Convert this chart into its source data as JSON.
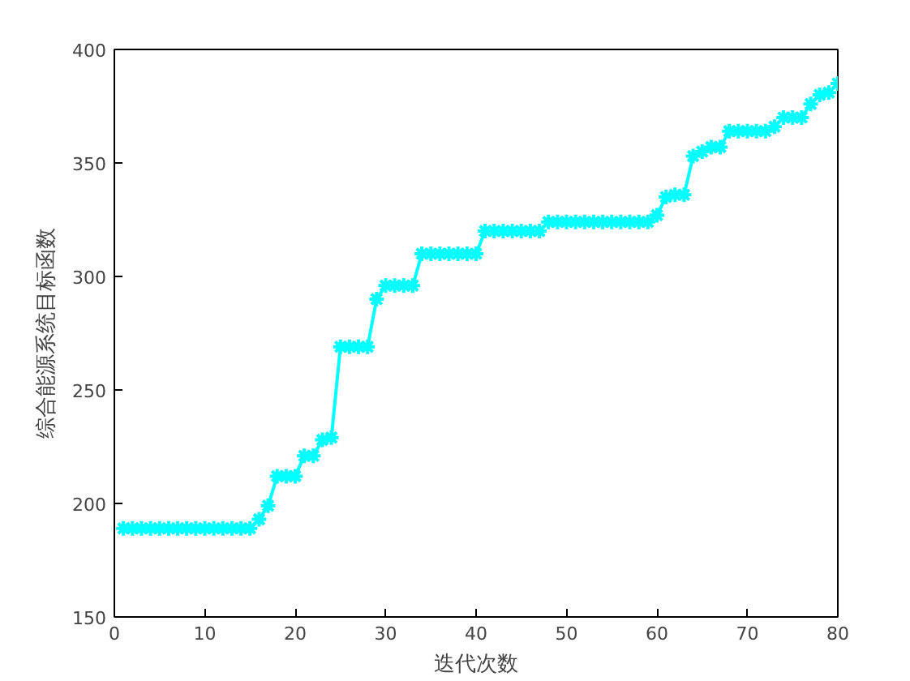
{
  "chart_data": {
    "type": "line",
    "xlabel": "迭代次数",
    "ylabel": "综合能源系统目标函数",
    "x": [
      1,
      2,
      3,
      4,
      5,
      6,
      7,
      8,
      9,
      10,
      11,
      12,
      13,
      14,
      15,
      16,
      17,
      18,
      19,
      20,
      21,
      22,
      23,
      24,
      25,
      26,
      27,
      28,
      29,
      30,
      31,
      32,
      33,
      34,
      35,
      36,
      37,
      38,
      39,
      40,
      41,
      42,
      43,
      44,
      45,
      46,
      47,
      48,
      49,
      50,
      51,
      52,
      53,
      54,
      55,
      56,
      57,
      58,
      59,
      60,
      61,
      62,
      63,
      64,
      65,
      66,
      67,
      68,
      69,
      70,
      71,
      72,
      73,
      74,
      75,
      76,
      77,
      78,
      79,
      80
    ],
    "series": [
      {
        "color": "#00ffff",
        "values": [
          189,
          189,
          189,
          189,
          189,
          189,
          189,
          189,
          189,
          189,
          189,
          189,
          189,
          189,
          189,
          193,
          199,
          212,
          212,
          212,
          221,
          221,
          228,
          229,
          269,
          269,
          269,
          269,
          290,
          296,
          296,
          296,
          296,
          310,
          310,
          310,
          310,
          310,
          310,
          310,
          320,
          320,
          320,
          320,
          320,
          320,
          320,
          324,
          324,
          324,
          324,
          324,
          324,
          324,
          324,
          324,
          324,
          324,
          324,
          327,
          335,
          336,
          336,
          353,
          355,
          357,
          357,
          364,
          364,
          364,
          364,
          364,
          366,
          370,
          370,
          370,
          376,
          380,
          381,
          385
        ]
      }
    ],
    "xlim": [
      0,
      80
    ],
    "ylim": [
      150,
      400
    ],
    "xticks": [
      0,
      10,
      20,
      30,
      40,
      50,
      60,
      70,
      80
    ],
    "yticks": [
      150,
      200,
      250,
      300,
      350,
      400
    ],
    "grid": false,
    "marker": "cross",
    "line_style": "solid"
  }
}
